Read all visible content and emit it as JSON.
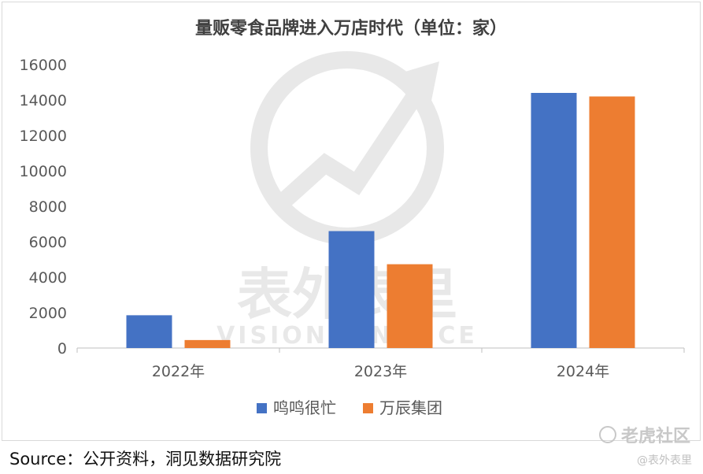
{
  "chart_data": {
    "type": "bar",
    "title": "量贩零食品牌进入万店时代（单位：家）",
    "categories": [
      "2022年",
      "2023年",
      "2024年"
    ],
    "series": [
      {
        "name": "鸣鸣很忙",
        "color": "#4472C4",
        "values": [
          1850,
          6600,
          14400
        ]
      },
      {
        "name": "万辰集团",
        "color": "#ED7D31",
        "values": [
          450,
          4730,
          14200
        ]
      }
    ],
    "ylim": [
      0,
      16000
    ],
    "yticks": [
      "16000",
      "14000",
      "12000",
      "10000",
      "8000",
      "6000",
      "4000",
      "2000",
      "0"
    ],
    "legend_position": "bottom",
    "grid": false
  },
  "watermark": {
    "center_cn": "表外表里",
    "center_en": "VISION FINANCE",
    "corner_logo": "老虎社区",
    "corner_handle": "@表外表里"
  },
  "source": "Source：公开资料，洞见数据研究院"
}
